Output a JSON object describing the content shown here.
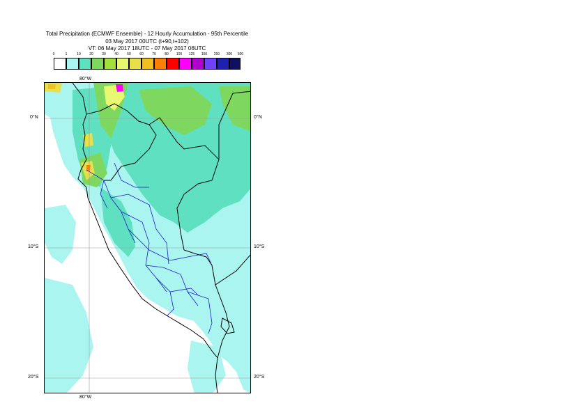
{
  "header": {
    "line1": "Total Precipitation (ECMWF Ensemble) - 12 Hourly Accumulation - 95th Percentile",
    "line2": "03 May 2017 00UTC (t+90,t+102)",
    "line3": "VT: 06 May 2017 18UTC - 07 May 2017 06UTC"
  },
  "legend": {
    "ticks": [
      "0",
      "1",
      "10",
      "20",
      "30",
      "40",
      "50",
      "60",
      "70",
      "80",
      "100",
      "125",
      "150",
      "200",
      "300",
      "500"
    ],
    "colors": [
      "#ffffff",
      "#aaf5f0",
      "#5fe0c0",
      "#7ed860",
      "#a4e03a",
      "#e8f870",
      "#e8e04a",
      "#f0c020",
      "#ff8000",
      "#ff0000",
      "#ff00ff",
      "#b000d0",
      "#7040ff",
      "#2020b0",
      "#101060"
    ]
  },
  "map": {
    "lat_labels": [
      "0°N",
      "10°S",
      "20°S"
    ],
    "lon_labels": [
      "80°W"
    ],
    "lon_range": [
      -85,
      -68
    ],
    "lat_range": [
      2.5,
      -21.5
    ]
  }
}
